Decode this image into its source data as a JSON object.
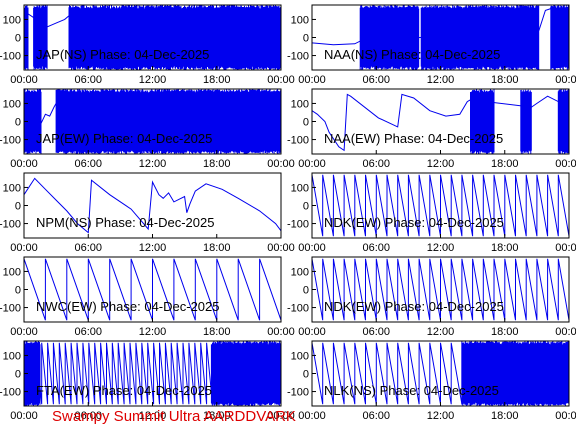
{
  "colors": {
    "trace": "#0000ee",
    "frame": "#000000",
    "footer": "#dd0000",
    "background": "#ffffff"
  },
  "footer": {
    "text": "Swampy Summit Ultra AARDDVARK"
  },
  "chart_data": [
    {
      "type": "line",
      "title": "JAP(NS) Phase: 04-Dec-2025",
      "xlabel": "",
      "ylabel": "",
      "x_unit": "hours UT",
      "xlim": [
        0,
        24
      ],
      "ylim": [
        -180,
        180
      ],
      "x_ticks": [
        "00:00",
        "06:00",
        "12:00",
        "18:00",
        "00:00"
      ],
      "y_ticks": [
        "100",
        "0",
        "-100"
      ],
      "description": "dense phase noise from ~02:30 to 24:00 with clean trace near 01:00-02:00",
      "series": [
        {
          "style": "dense",
          "segments": [
            [
              0,
              0.4
            ],
            [
              0.9,
              2.2
            ],
            [
              4.2,
              24
            ]
          ],
          "x": [
            0.4,
            0.9,
            2.2,
            3.0,
            3.8,
            4.2
          ],
          "y": [
            130,
            110,
            60,
            80,
            100,
            120
          ]
        }
      ]
    },
    {
      "type": "line",
      "title": "NAA(NS) Phase: 04-Dec-2025",
      "xlabel": "",
      "ylabel": "",
      "x_unit": "hours UT",
      "xlim": [
        0,
        24
      ],
      "ylim": [
        -180,
        180
      ],
      "x_ticks": [
        "00:00",
        "06:00",
        "12:00",
        "18:00",
        "00:00"
      ],
      "y_ticks": [
        "100",
        "0",
        "-100"
      ],
      "series": [
        {
          "style": "dense",
          "segments": [
            [
              4.5,
              10.0
            ],
            [
              10.2,
              21.2
            ],
            [
              22.3,
              24
            ]
          ],
          "x": [
            0,
            2,
            4,
            4.5,
            21.2,
            21.8,
            22.3
          ],
          "y": [
            -30,
            -40,
            -35,
            -20,
            40,
            150,
            160
          ]
        }
      ]
    },
    {
      "type": "line",
      "title": "JAP(EW) Phase: 04-Dec-2025",
      "xlabel": "",
      "ylabel": "",
      "x_unit": "hours UT",
      "xlim": [
        0,
        24
      ],
      "ylim": [
        -180,
        180
      ],
      "x_ticks": [
        "00:00",
        "06:00",
        "12:00",
        "18:00",
        "00:00"
      ],
      "y_ticks": [
        "100",
        "0",
        "-100"
      ],
      "series": [
        {
          "style": "dense",
          "segments": [
            [
              0,
              1.6
            ],
            [
              3.0,
              24
            ]
          ],
          "x": [
            1.6,
            2.0,
            2.4,
            2.8,
            3.0
          ],
          "y": [
            -10,
            40,
            30,
            80,
            100
          ]
        }
      ]
    },
    {
      "type": "line",
      "title": "NAA(EW) Phase: 04-Dec-2025",
      "xlabel": "",
      "ylabel": "",
      "x_unit": "hours UT",
      "xlim": [
        0,
        24
      ],
      "ylim": [
        -180,
        180
      ],
      "x_ticks": [
        "00:00",
        "06:00",
        "12:00",
        "18:00",
        "00:00"
      ],
      "y_ticks": [
        "100",
        "0",
        "-100"
      ],
      "series": [
        {
          "style": "line",
          "x": [
            0,
            0.5,
            1.2,
            1.6,
            2.5,
            3.0,
            3.3,
            3.6,
            6.2,
            8.0,
            8.4,
            9.5,
            11.0,
            12.5,
            13.8,
            14.5,
            14.8,
            20.5,
            21.0,
            22.0,
            23.0,
            23.6,
            24
          ],
          "y": [
            60,
            40,
            0,
            -60,
            -140,
            -160,
            150,
            140,
            20,
            -30,
            150,
            130,
            60,
            30,
            40,
            110,
            120,
            80,
            100,
            140,
            110,
            40,
            60
          ]
        },
        {
          "style": "dense",
          "segments": [
            [
              14.8,
              17.0
            ],
            [
              19.5,
              20.5
            ],
            [
              23.0,
              24
            ]
          ]
        }
      ]
    },
    {
      "type": "line",
      "title": "NPM(NS) Phase: 04-Dec-2025",
      "xlabel": "",
      "ylabel": "",
      "x_unit": "hours UT",
      "xlim": [
        0,
        24
      ],
      "ylim": [
        -180,
        180
      ],
      "x_ticks": [
        "00:00",
        "06:00",
        "12:00",
        "18:00",
        "00:00"
      ],
      "y_ticks": [
        "100",
        "0",
        "-100"
      ],
      "series": [
        {
          "style": "line",
          "x": [
            0,
            1.0,
            2.0,
            3.0,
            4.0,
            5.0,
            6.0,
            6.3,
            8.0,
            10.0,
            11.6,
            12.0,
            12.6,
            13.0,
            13.5,
            14.0,
            15.0,
            15.2,
            15.5,
            16.0,
            17.0,
            18.5,
            20.0,
            22.0,
            23.5,
            24
          ],
          "y": [
            60,
            150,
            90,
            30,
            -30,
            -100,
            -150,
            140,
            60,
            -20,
            -130,
            130,
            60,
            40,
            70,
            20,
            50,
            -40,
            10,
            80,
            120,
            90,
            40,
            -30,
            -100,
            -140
          ]
        }
      ]
    },
    {
      "type": "line",
      "title": "NDK(EW) Phase: 04-Dec-2025",
      "xlabel": "",
      "ylabel": "",
      "x_unit": "hours UT",
      "xlim": [
        0,
        24
      ],
      "ylim": [
        -180,
        180
      ],
      "x_ticks": [
        "00:00",
        "06:00",
        "12:00",
        "18:00",
        "00:00"
      ],
      "y_ticks": [
        "100",
        "0",
        "-100"
      ],
      "description": "repeating sawtooth phase ramps, period ~1 h, with a hump near 15:00",
      "series": [
        {
          "style": "sawtooth",
          "period_hours": 1.0,
          "ylow": -170,
          "yhigh": 170
        }
      ]
    },
    {
      "type": "line",
      "title": "NWC(EW) Phase: 04-Dec-2025",
      "xlabel": "",
      "ylabel": "",
      "x_unit": "hours UT",
      "xlim": [
        0,
        24
      ],
      "ylim": [
        -180,
        180
      ],
      "x_ticks": [
        "00:00",
        "06:00",
        "12:00",
        "18:00",
        "00:00"
      ],
      "y_ticks": [
        "100",
        "0",
        "-100"
      ],
      "series": [
        {
          "style": "sawtooth",
          "period_hours": 2.0,
          "ylow": -170,
          "yhigh": 170
        }
      ]
    },
    {
      "type": "line",
      "title": "NDK(EW) Phase: 04-Dec-2025",
      "xlabel": "",
      "ylabel": "",
      "x_unit": "hours UT",
      "xlim": [
        0,
        24
      ],
      "ylim": [
        -180,
        180
      ],
      "x_ticks": [
        "00:00",
        "06:00",
        "12:00",
        "18:00",
        "00:00"
      ],
      "y_ticks": [
        "100",
        "0",
        "-100"
      ],
      "series": [
        {
          "style": "sawtooth",
          "period_hours": 1.0,
          "ylow": -170,
          "yhigh": 170
        }
      ]
    },
    {
      "type": "line",
      "title": "FTA(EW) Phase: 04-Dec-2025",
      "xlabel": "",
      "ylabel": "",
      "x_unit": "hours UT",
      "xlim": [
        0,
        24
      ],
      "ylim": [
        -180,
        180
      ],
      "x_ticks": [
        "00:00",
        "06:00",
        "12:00",
        "18:00",
        "00:00"
      ],
      "y_ticks": [
        "100",
        "0",
        "-100"
      ],
      "series": [
        {
          "style": "sawtooth",
          "period_hours": 0.55,
          "ylow": -170,
          "yhigh": 170
        },
        {
          "style": "dense",
          "segments": [
            [
              0,
              1.5
            ],
            [
              17.5,
              24
            ]
          ]
        }
      ]
    },
    {
      "type": "line",
      "title": "NLK(NS) Phase: 04-Dec-2025",
      "xlabel": "",
      "ylabel": "",
      "x_unit": "hours UT",
      "xlim": [
        0,
        24
      ],
      "ylim": [
        -180,
        180
      ],
      "x_ticks": [
        "00:00",
        "06:00",
        "12:00",
        "18:00",
        "00:00"
      ],
      "y_ticks": [
        "100",
        "0",
        "-100"
      ],
      "series": [
        {
          "style": "sawtooth",
          "period_hours": 1.0,
          "ylow": -170,
          "yhigh": 170
        },
        {
          "style": "dense",
          "segments": [
            [
              14.0,
              24
            ]
          ]
        }
      ]
    }
  ]
}
